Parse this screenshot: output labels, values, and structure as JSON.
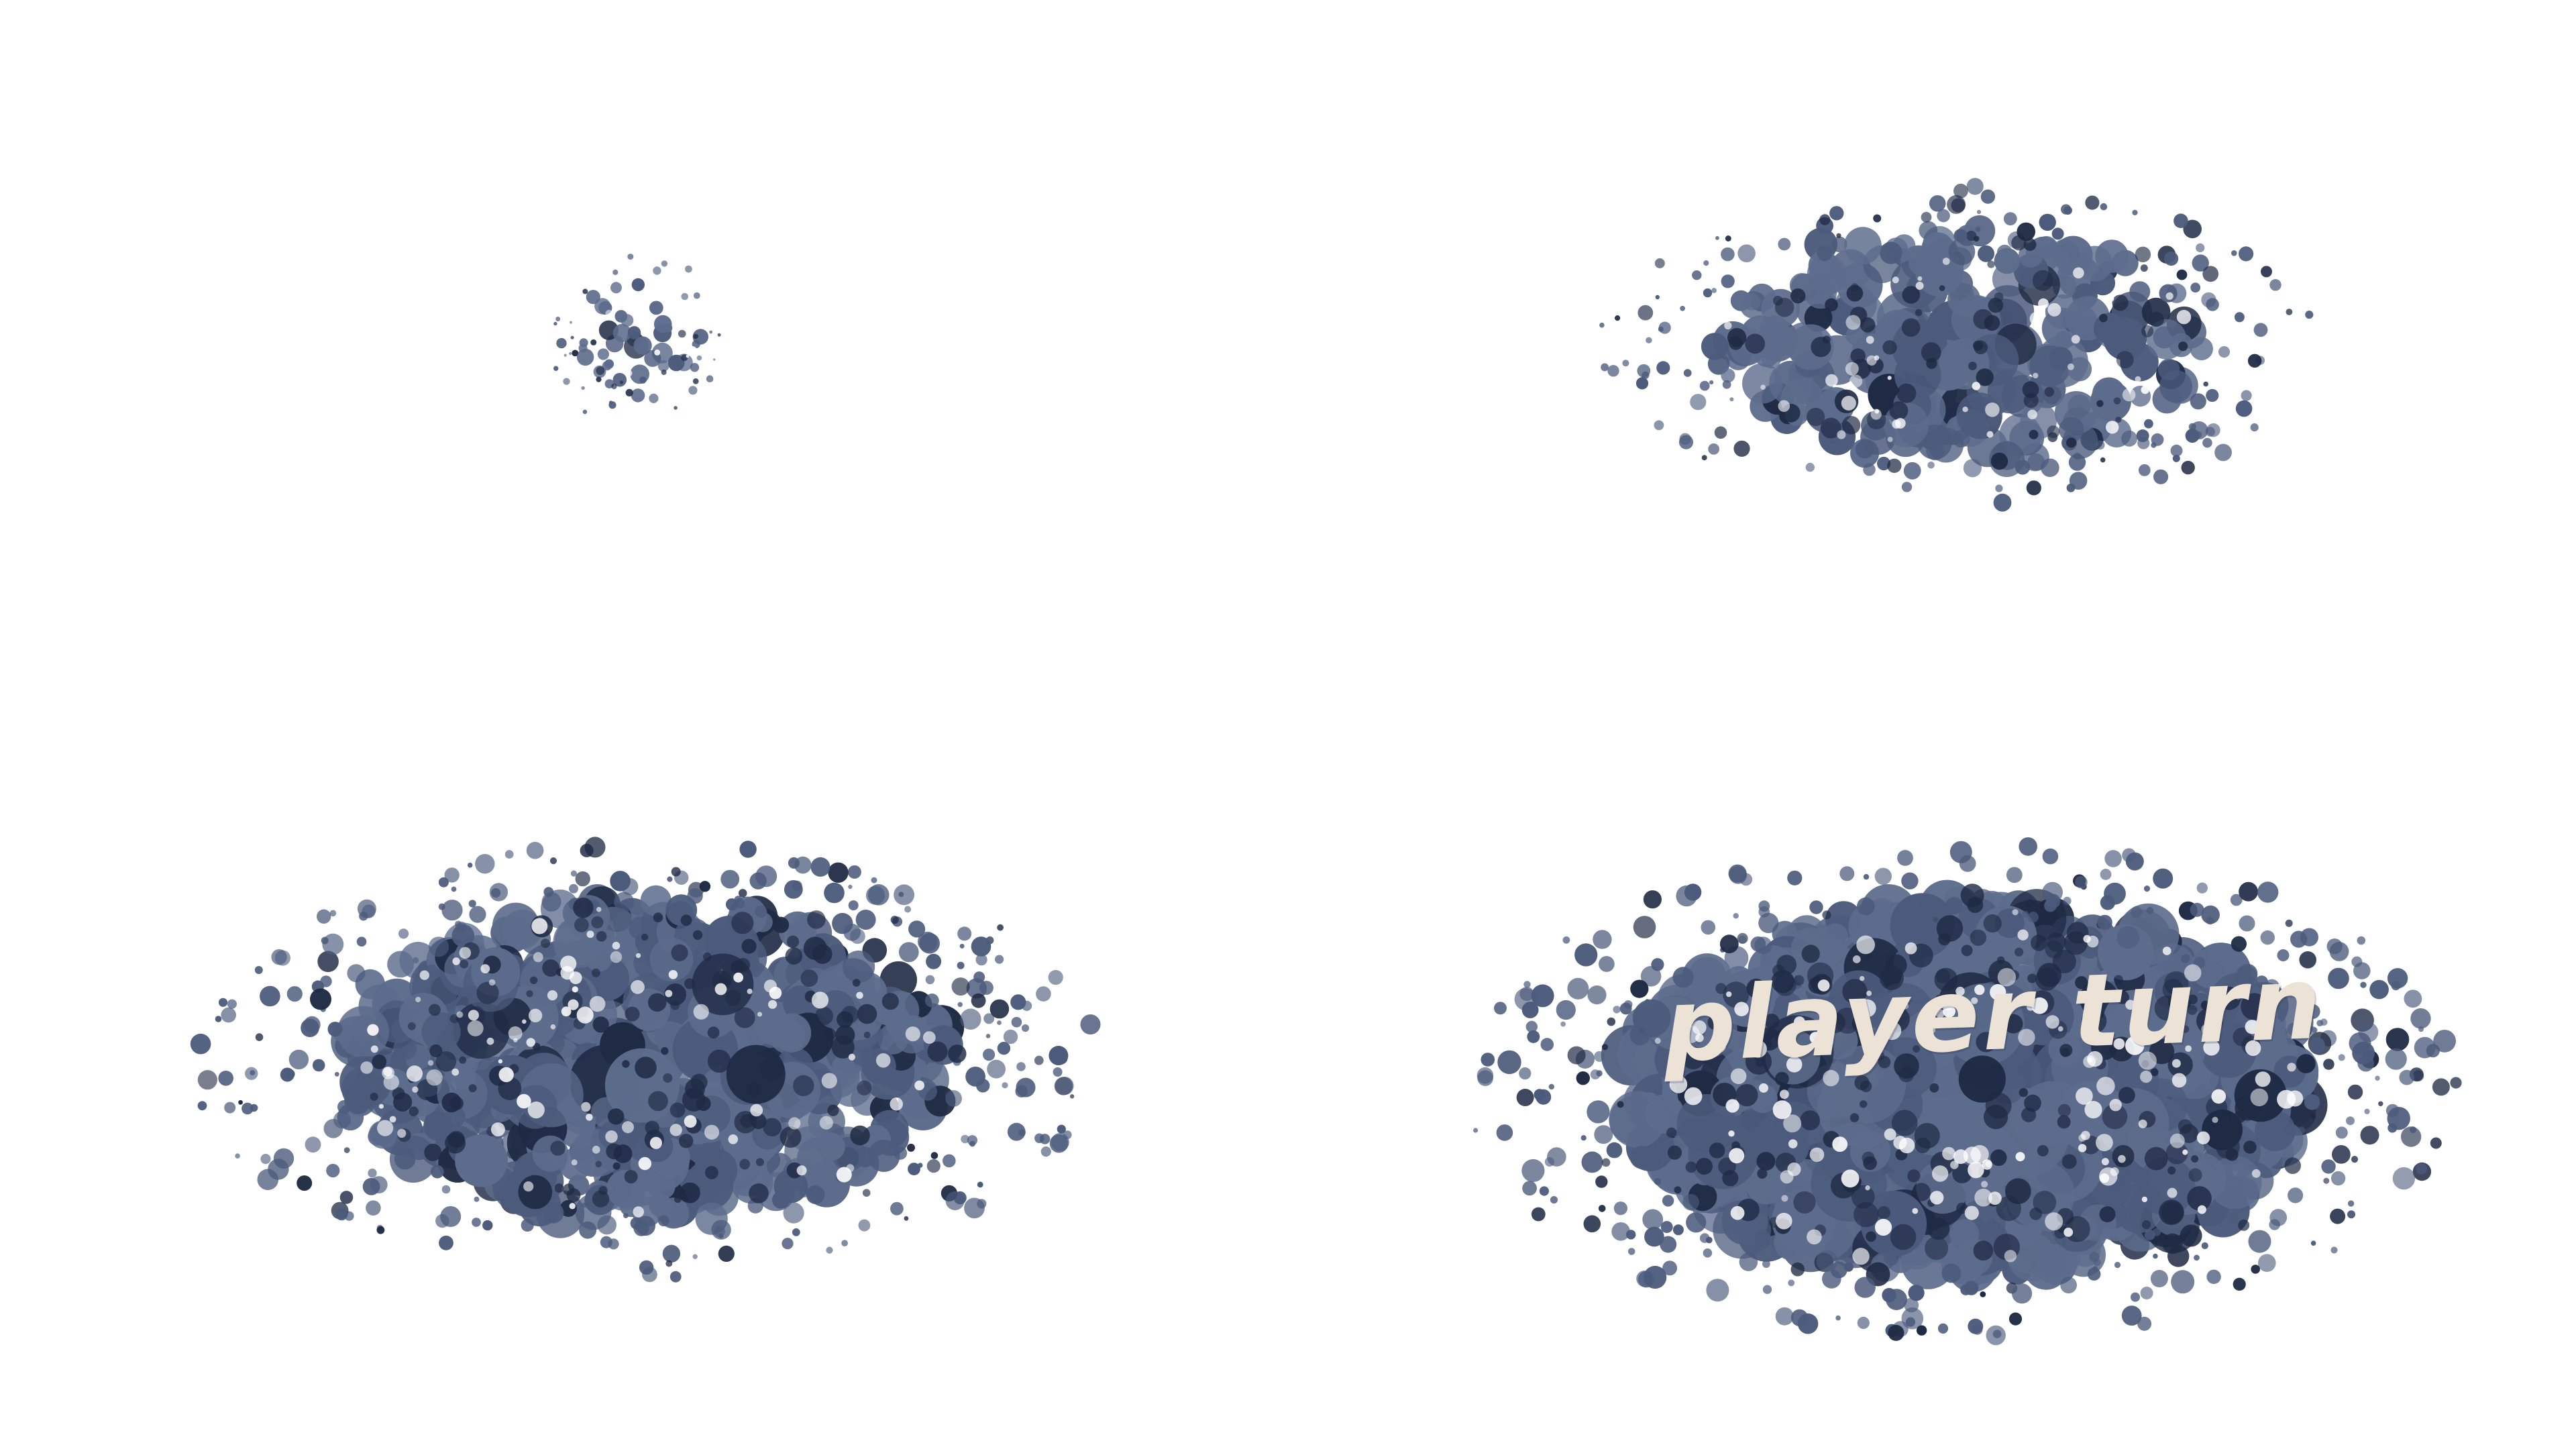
{
  "banner": {
    "label": "player turn"
  },
  "palette": {
    "background": "#ffffff",
    "ink": "#4c5b7c",
    "ink_light": "#5d6c8c",
    "ink_dark": "#1f2a44",
    "label": "#ece3d6"
  },
  "animation_stages": [
    "splat-small",
    "splat-medium",
    "splat-large",
    "splat-full"
  ]
}
